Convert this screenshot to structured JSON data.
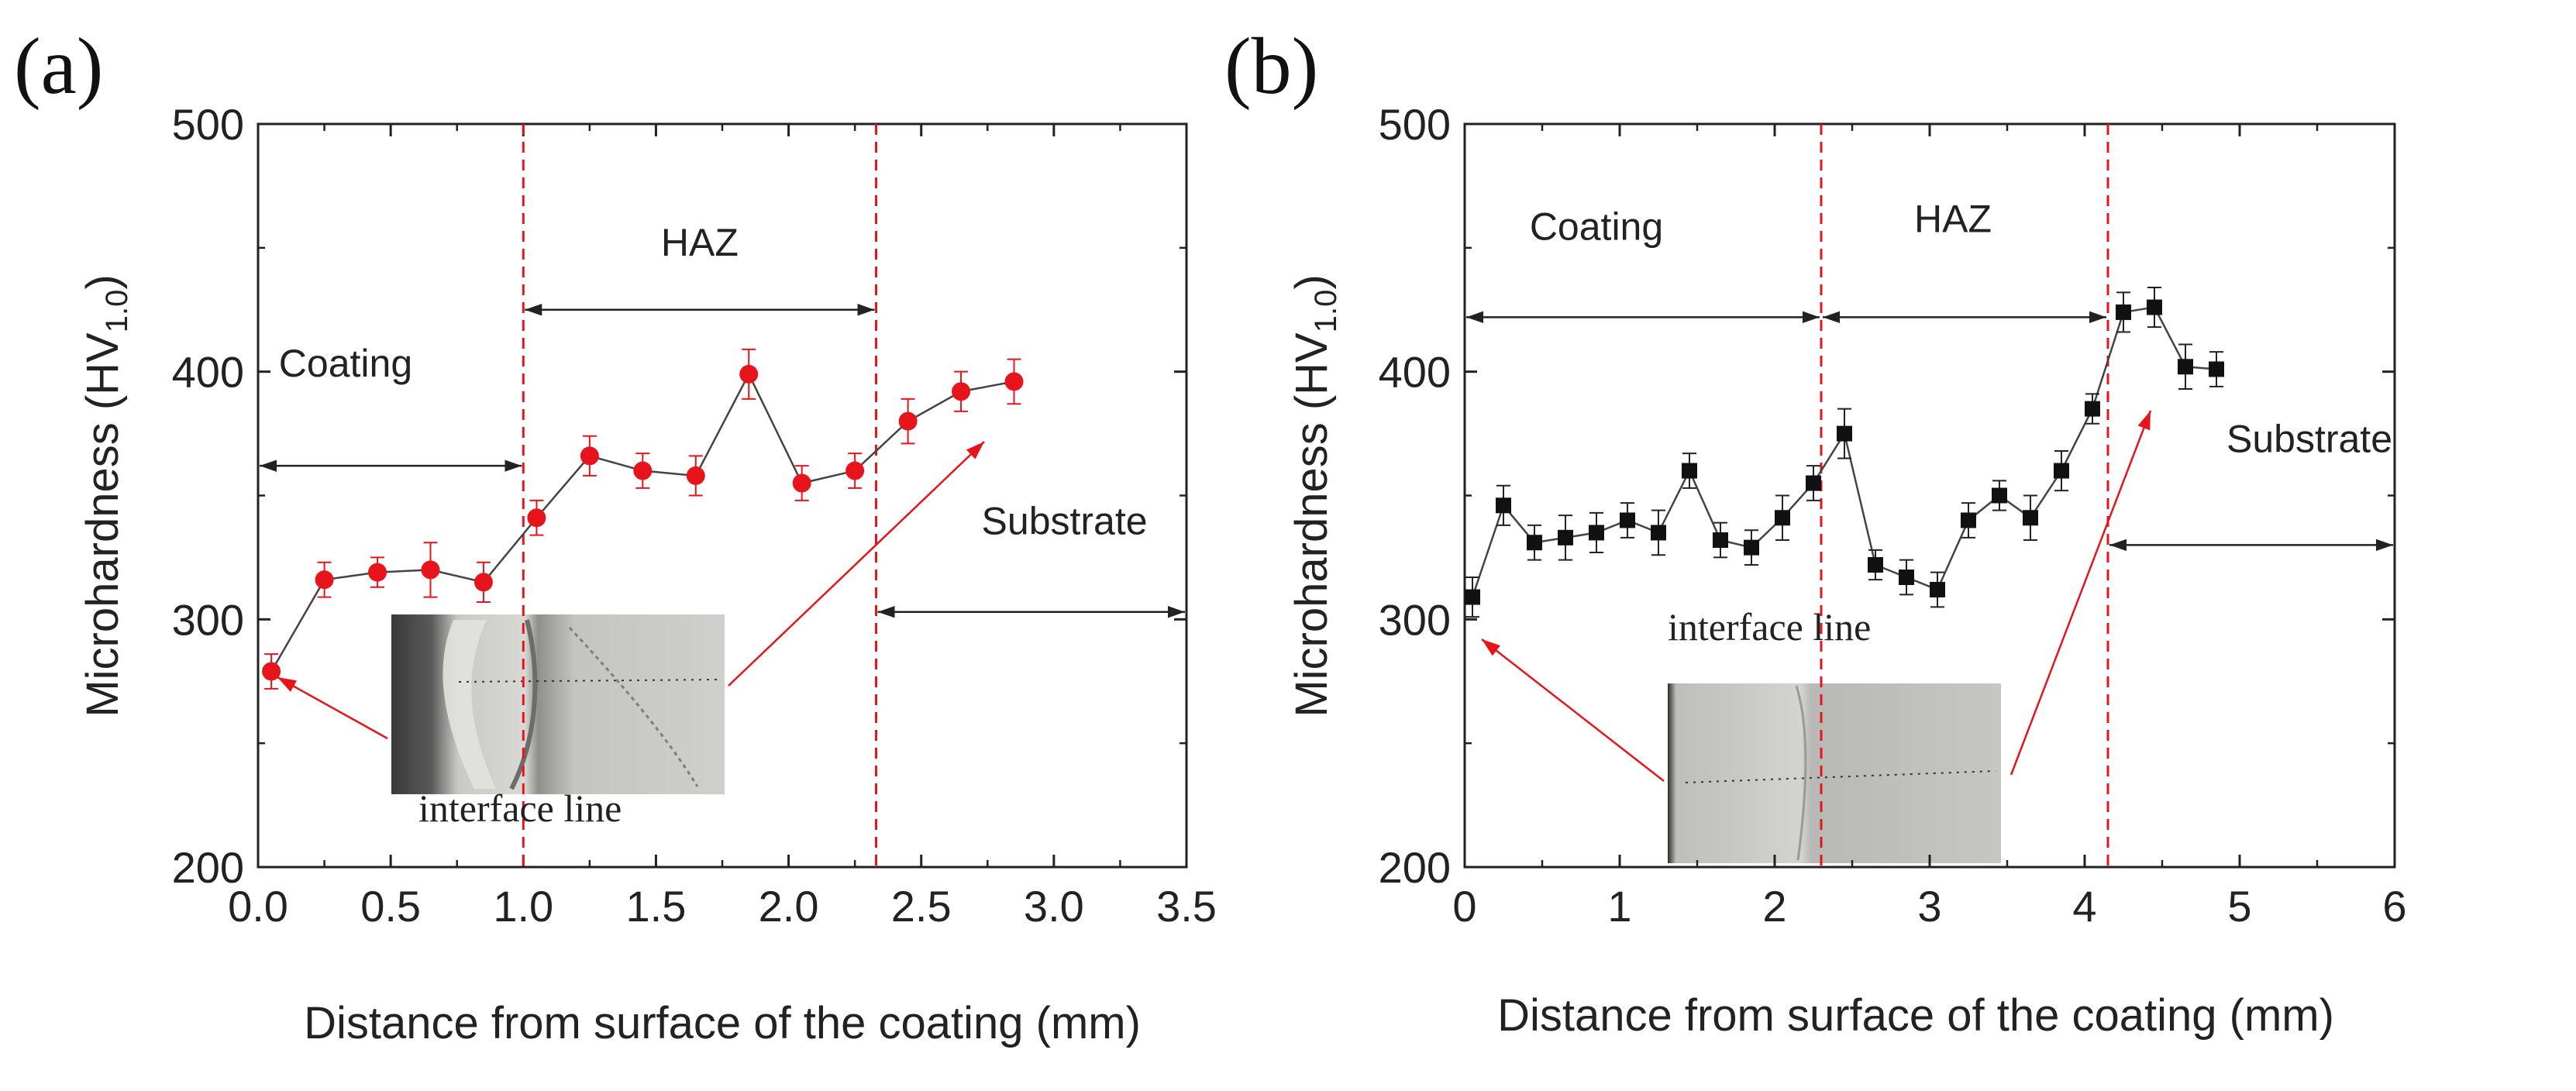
{
  "chart_data": [
    {
      "type": "line",
      "panel_label": "(a)",
      "xlabel": "Distance from surface of the coating (mm)",
      "ylabel": "Microhardness (HV",
      "ylabel_sub": "1.0",
      "ylabel_close": ")",
      "xlim": [
        0.0,
        3.5
      ],
      "ylim": [
        200,
        500
      ],
      "x_ticks": [
        "0.0",
        "0.5",
        "1.0",
        "1.5",
        "2.0",
        "2.5",
        "3.0",
        "3.5"
      ],
      "y_ticks": [
        "200",
        "300",
        "400",
        "500"
      ],
      "marker": "circle",
      "marker_color": "#e8141c",
      "series": [
        {
          "name": "microhardness",
          "x": [
            0.05,
            0.25,
            0.45,
            0.65,
            0.85,
            1.05,
            1.25,
            1.45,
            1.65,
            1.85,
            2.05,
            2.25,
            2.45,
            2.65,
            2.85
          ],
          "y": [
            279,
            316,
            319,
            320,
            315,
            341,
            366,
            360,
            358,
            399,
            355,
            360,
            380,
            392,
            396
          ],
          "err": [
            7,
            7,
            6,
            11,
            8,
            7,
            8,
            7,
            8,
            10,
            7,
            7,
            9,
            8,
            9
          ]
        }
      ],
      "boundaries_x": [
        1.0,
        2.33
      ],
      "annotations": {
        "haz": {
          "label": "HAZ",
          "from": 1.0,
          "to": 2.33,
          "y": 425
        },
        "coating": {
          "label": "Coating",
          "from": 0.0,
          "to": 1.0,
          "y": 362
        },
        "substrate": {
          "label": "Substrate",
          "from": 2.33,
          "to": 3.5,
          "y": 303
        }
      },
      "inset_label": "interface line"
    },
    {
      "type": "line",
      "panel_label": "(b)",
      "xlabel": "Distance from surface of the coating (mm)",
      "ylabel": "Microhardness (HV",
      "ylabel_sub": "1.0",
      "ylabel_close": ")",
      "xlim": [
        0,
        6
      ],
      "ylim": [
        200,
        500
      ],
      "x_ticks": [
        "0",
        "1",
        "2",
        "3",
        "4",
        "5",
        "6"
      ],
      "y_ticks": [
        "200",
        "300",
        "400",
        "500"
      ],
      "marker": "square",
      "marker_color": "#111111",
      "series": [
        {
          "name": "microhardness",
          "x": [
            0.05,
            0.25,
            0.45,
            0.65,
            0.85,
            1.05,
            1.25,
            1.45,
            1.65,
            1.85,
            2.05,
            2.25,
            2.45,
            2.65,
            2.85,
            3.05,
            3.25,
            3.45,
            3.65,
            3.85,
            4.05,
            4.25,
            4.45,
            4.65,
            4.85
          ],
          "y": [
            309,
            346,
            331,
            333,
            335,
            340,
            335,
            360,
            332,
            329,
            341,
            355,
            375,
            322,
            317,
            312,
            340,
            350,
            341,
            360,
            385,
            424,
            426,
            402,
            401
          ],
          "err": [
            8,
            8,
            7,
            9,
            8,
            7,
            9,
            7,
            7,
            7,
            9,
            7,
            10,
            6,
            7,
            7,
            7,
            6,
            9,
            8,
            6,
            8,
            8,
            9,
            7
          ]
        }
      ],
      "boundaries_x": [
        2.3,
        4.15
      ],
      "annotations": {
        "coating": {
          "label": "Coating",
          "from": 0.0,
          "to": 2.3,
          "y": 422
        },
        "haz": {
          "label": "HAZ",
          "from": 2.3,
          "to": 4.15,
          "y": 422
        },
        "substrate": {
          "label": "Substrate",
          "from": 4.15,
          "to": 6.0,
          "y": 330
        }
      },
      "inset_label": "interface line"
    }
  ]
}
